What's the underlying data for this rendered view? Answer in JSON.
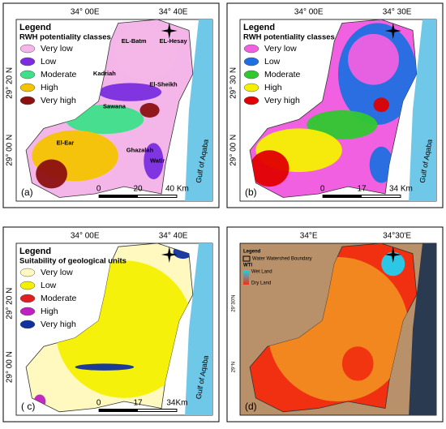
{
  "panels": [
    {
      "label": "(a)",
      "top_ticks": [
        "34° 00E",
        "34° 40E"
      ],
      "left_ticks": [
        "29° 20 N",
        "29° 00 N"
      ],
      "legend_title": "Legend",
      "legend_subtitle": "RWH potentiality  classes",
      "legend_items": [
        {
          "name": "Very low",
          "color": "#f4b6e8"
        },
        {
          "name": "Low",
          "color": "#7a2ee0"
        },
        {
          "name": "Moderate",
          "color": "#3ee08a"
        },
        {
          "name": "High",
          "color": "#f5c400"
        },
        {
          "name": "Very high",
          "color": "#8b1010"
        }
      ],
      "places": [
        "EL-Batm",
        "EL-Hesay",
        "Kadriah",
        "El-Sheikh",
        "Sawana",
        "El-Ear",
        "Ghazalah",
        "Watir"
      ],
      "scale": [
        "0",
        "20",
        "40 Km"
      ],
      "sea": "Gulf of Aqaba"
    },
    {
      "label": "(b)",
      "top_ticks": [
        "34° 00E",
        "34° 30E"
      ],
      "left_ticks": [
        "29° 30 N",
        "29° 00 N"
      ],
      "legend_title": "Legend",
      "legend_subtitle": "RWH potentiality  classes",
      "legend_items": [
        {
          "name": "Very low",
          "color": "#f060e0"
        },
        {
          "name": "Low",
          "color": "#1f6fe0"
        },
        {
          "name": "Moderate",
          "color": "#2fc82f"
        },
        {
          "name": "High",
          "color": "#f5f000"
        },
        {
          "name": "Very high",
          "color": "#e00000"
        }
      ],
      "scale": [
        "0",
        "17",
        "34 Km"
      ],
      "sea": "Gulf of Aqaba"
    },
    {
      "label": "( c)",
      "top_ticks": [
        "34° 00E",
        "34° 40E"
      ],
      "left_ticks": [
        "29° 20 N",
        "29° 00 N"
      ],
      "legend_title": "Legend",
      "legend_subtitle": "Suitability of geological units",
      "legend_items": [
        {
          "name": "Very low",
          "color": "#fff9c0"
        },
        {
          "name": "Low",
          "color": "#f5f000"
        },
        {
          "name": "Moderate",
          "color": "#e02020"
        },
        {
          "name": "High",
          "color": "#c020c0"
        },
        {
          "name": "Very high",
          "color": "#1030a0"
        }
      ],
      "scale": [
        "0",
        "17",
        "34Km"
      ],
      "sea": "Gulf of Aqaba"
    },
    {
      "label": "(d)",
      "top_ticks": [
        "34°E",
        "34°30'E"
      ],
      "left_ticks": [
        "29°30'N",
        "29°N"
      ],
      "legend_title": "Legend",
      "boundary_label": "Water Watershed Boundary",
      "legend_subtitle": "WTI",
      "legend_items": [
        {
          "name": "Wet Land",
          "color": "#20d0f0"
        },
        {
          "name": "Dry Land",
          "color": "#f03010"
        }
      ]
    }
  ]
}
